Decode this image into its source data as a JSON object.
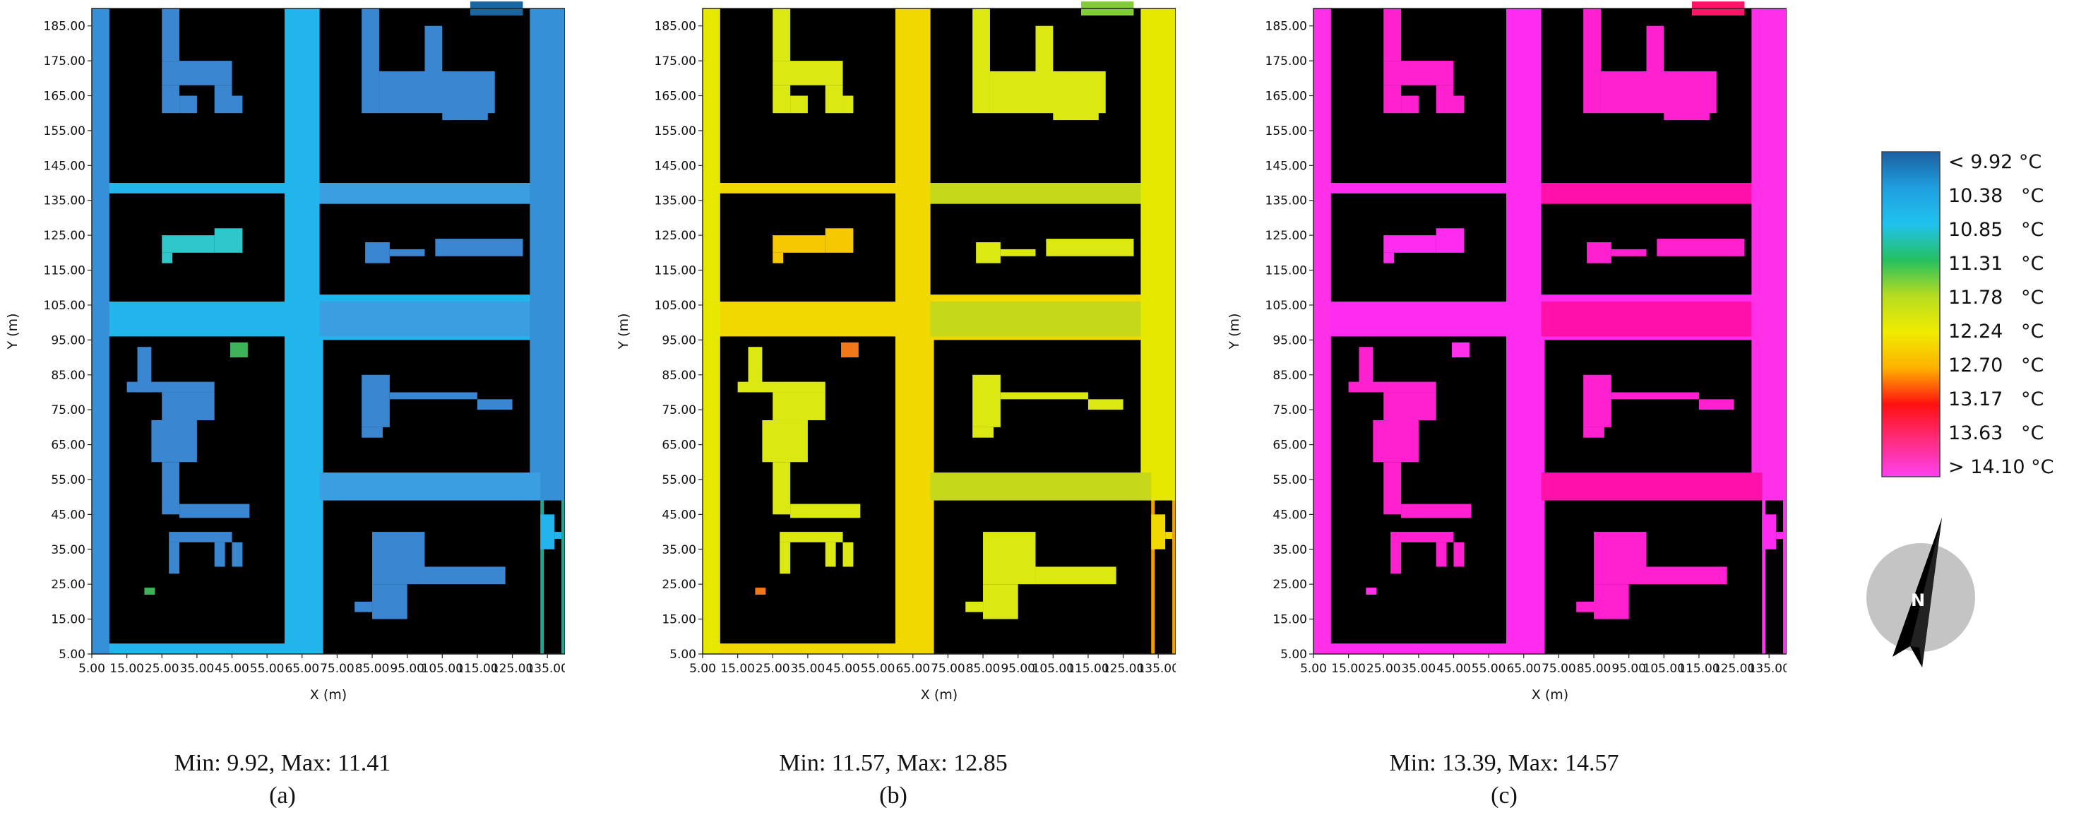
{
  "figure": {
    "panels": [
      {
        "id": "a",
        "minmax": "Min: 9.92, Max: 11.41",
        "label": "(a)",
        "palette": "a"
      },
      {
        "id": "b",
        "minmax": "Min: 11.57, Max: 12.85",
        "label": "(b)",
        "palette": "b"
      },
      {
        "id": "c",
        "minmax": "Min: 13.39, Max: 14.57",
        "label": "(c)",
        "palette": "c"
      }
    ],
    "compass_label": "N"
  },
  "chart_data": [
    {
      "type": "heatmap",
      "title": "",
      "xlabel": "X (m)",
      "ylabel": "Y (m)",
      "xlim": [
        5,
        140
      ],
      "ylim": [
        5,
        190
      ],
      "x_ticks": [
        "5.00",
        "15.00",
        "25.00",
        "35.00",
        "45.00",
        "55.00",
        "65.00",
        "75.00",
        "85.00",
        "95.00",
        "105.00",
        "115.00",
        "125.00",
        "135.00"
      ],
      "y_ticks": [
        "5.00",
        "15.00",
        "25.00",
        "35.00",
        "45.00",
        "55.00",
        "65.00",
        "75.00",
        "85.00",
        "95.00",
        "105.00",
        "115.00",
        "125.00",
        "135.00",
        "145.00",
        "155.00",
        "165.00",
        "175.00",
        "185.00"
      ],
      "min": 9.92,
      "max": 11.41,
      "dominant_color": "#2a8fd6",
      "colors": {
        "street": "#22b5ec",
        "edge": "#3590d8",
        "courtyard": "#3a86d0",
        "plaza": "#3a9ee0",
        "hotspot": "#3fb35a",
        "corner": "#20a890",
        "facade": "#2fc7c9",
        "accent": "#1a66a0",
        "block": "#000000"
      }
    },
    {
      "type": "heatmap",
      "title": "",
      "xlabel": "X (m)",
      "ylabel": "Y (m)",
      "xlim": [
        5,
        140
      ],
      "ylim": [
        5,
        190
      ],
      "x_ticks": [
        "5.00",
        "15.00",
        "25.00",
        "35.00",
        "45.00",
        "55.00",
        "65.00",
        "75.00",
        "85.00",
        "95.00",
        "105.00",
        "115.00",
        "125.00",
        "135.00"
      ],
      "y_ticks": [
        "5.00",
        "15.00",
        "25.00",
        "35.00",
        "45.00",
        "55.00",
        "65.00",
        "75.00",
        "85.00",
        "95.00",
        "105.00",
        "115.00",
        "125.00",
        "135.00",
        "145.00",
        "155.00",
        "165.00",
        "175.00",
        "185.00"
      ],
      "min": 11.57,
      "max": 12.85,
      "dominant_color": "#e8e810",
      "colors": {
        "street": "#f0d800",
        "edge": "#e6e800",
        "courtyard": "#dce812",
        "plaza": "#c6d81a",
        "hotspot": "#f07818",
        "corner": "#f0a000",
        "facade": "#f6c800",
        "accent": "#82cc38",
        "block": "#000000"
      }
    },
    {
      "type": "heatmap",
      "title": "",
      "xlabel": "X (m)",
      "ylabel": "Y (m)",
      "xlim": [
        5,
        140
      ],
      "ylim": [
        5,
        190
      ],
      "x_ticks": [
        "5.00",
        "15.00",
        "25.00",
        "35.00",
        "45.00",
        "55.00",
        "65.00",
        "75.00",
        "85.00",
        "95.00",
        "105.00",
        "115.00",
        "125.00",
        "135.00"
      ],
      "y_ticks": [
        "5.00",
        "15.00",
        "25.00",
        "35.00",
        "45.00",
        "55.00",
        "65.00",
        "75.00",
        "85.00",
        "95.00",
        "105.00",
        "115.00",
        "125.00",
        "135.00",
        "145.00",
        "155.00",
        "165.00",
        "175.00",
        "185.00"
      ],
      "min": 13.39,
      "max": 14.57,
      "dominant_color": "#ff28e0",
      "colors": {
        "street": "#ff2cf0",
        "edge": "#ff30e8",
        "courtyard": "#ff20d0",
        "plaza": "#ff10a8",
        "hotspot": "#ff30e8",
        "corner": "#ff34f0",
        "facade": "#ff2cf0",
        "accent": "#ff1468",
        "block": "#000000"
      }
    }
  ],
  "legend": {
    "labels": [
      "< 9.92 °C",
      "10.38   °C",
      "10.85   °C",
      "11.31   °C",
      "11.78   °C",
      "12.24   °C",
      "12.70   °C",
      "13.17   °C",
      "13.63   °C",
      "> 14.10 °C"
    ],
    "colors": [
      "#1d5fa0",
      "#1f9fe0",
      "#20c2ee",
      "#25c060",
      "#b8dc20",
      "#f0ec00",
      "#ffb000",
      "#ff1010",
      "#ff2c80",
      "#ff40f0"
    ]
  }
}
